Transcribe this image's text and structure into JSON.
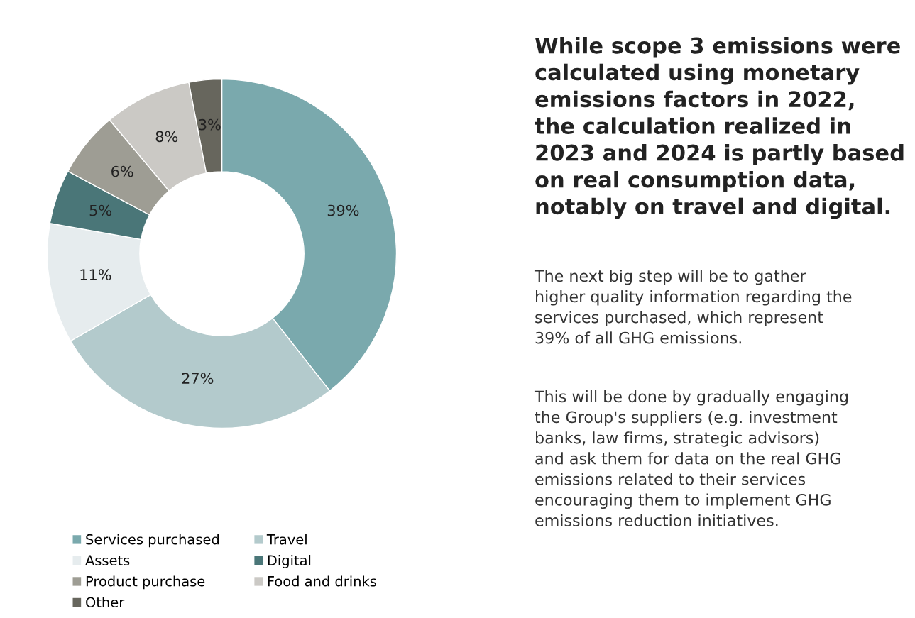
{
  "chart_data": {
    "type": "donut",
    "title": "While scope 3 emissions were\ncalculated using monetary\nemissions factors in 2022,\nthe calculation realized in\n2023 and 2024 is partly based\non real consumption data,\nnotably on travel and digital.",
    "categories": [
      "Services purchased",
      "Travel",
      "Assets",
      "Digital",
      "Product purchase",
      "Food and drinks",
      "Other"
    ],
    "values": [
      39,
      27,
      11,
      5,
      6,
      8,
      3
    ],
    "colors": [
      "#7aa9ad",
      "#b3cacc",
      "#e6ecee",
      "#4a7678",
      "#9e9d94",
      "#cbc9c5",
      "#67665d"
    ],
    "value_labels": [
      "39%",
      "27%",
      "11%",
      "5%",
      "6%",
      "8%",
      "3%"
    ],
    "legend": "bottom",
    "annotations": [
      "The next big step will be to gather\nhigher quality information regarding the\nservices purchased, which represent\n39% of all GHG emissions.",
      "This will be done by gradually engaging\nthe Group's suppliers (e.g. investment\nbanks, law firms, strategic advisors)\nand ask them for data on the real GHG\nemissions related to their services\nencouraging them to implement GHG\nemissions reduction initiatives."
    ]
  }
}
